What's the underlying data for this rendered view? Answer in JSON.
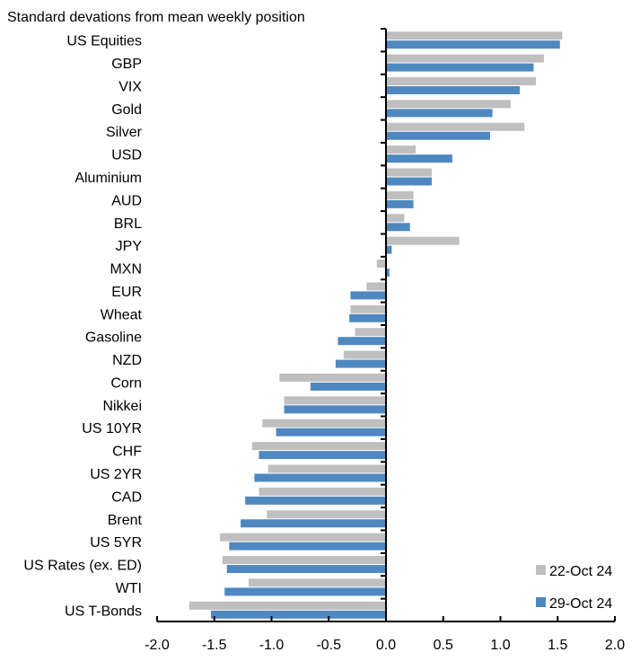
{
  "chart_data": {
    "type": "bar",
    "orientation": "horizontal",
    "title": "Standard devations from mean weekly position",
    "xlabel": "",
    "ylabel": "",
    "xlim": [
      -2.0,
      2.0
    ],
    "xticks": [
      "-2.0",
      "-1.5",
      "-1.0",
      "-0.5",
      "0.0",
      "0.5",
      "1.0",
      "1.5",
      "2.0"
    ],
    "grid": false,
    "legend_position": "bottom-right",
    "categories": [
      "US Equities",
      "GBP",
      "VIX",
      "Gold",
      "Silver",
      "USD",
      "Aluminium",
      "AUD",
      "BRL",
      "JPY",
      "MXN",
      "EUR",
      "Wheat",
      "Gasoline",
      "NZD",
      "Corn",
      "Nikkei",
      "US 10YR",
      "CHF",
      "US 2YR",
      "CAD",
      "Brent",
      "US 5YR",
      "US Rates (ex. ED)",
      "WTI",
      "US T-Bonds"
    ],
    "series": [
      {
        "name": "22-Oct 24",
        "color": "#bfbfbf",
        "values": [
          1.54,
          1.38,
          1.31,
          1.09,
          1.21,
          0.26,
          0.4,
          0.24,
          0.16,
          0.64,
          -0.08,
          -0.17,
          -0.31,
          -0.27,
          -0.37,
          -0.93,
          -0.89,
          -1.08,
          -1.17,
          -1.03,
          -1.11,
          -1.04,
          -1.45,
          -1.43,
          -1.2,
          -1.72
        ]
      },
      {
        "name": "29-Oct 24",
        "color": "#4f88c0",
        "values": [
          1.52,
          1.29,
          1.17,
          0.93,
          0.91,
          0.58,
          0.4,
          0.24,
          0.21,
          0.05,
          0.03,
          -0.31,
          -0.32,
          -0.42,
          -0.44,
          -0.66,
          -0.89,
          -0.96,
          -1.11,
          -1.15,
          -1.23,
          -1.27,
          -1.37,
          -1.39,
          -1.41,
          -1.53
        ]
      }
    ]
  }
}
